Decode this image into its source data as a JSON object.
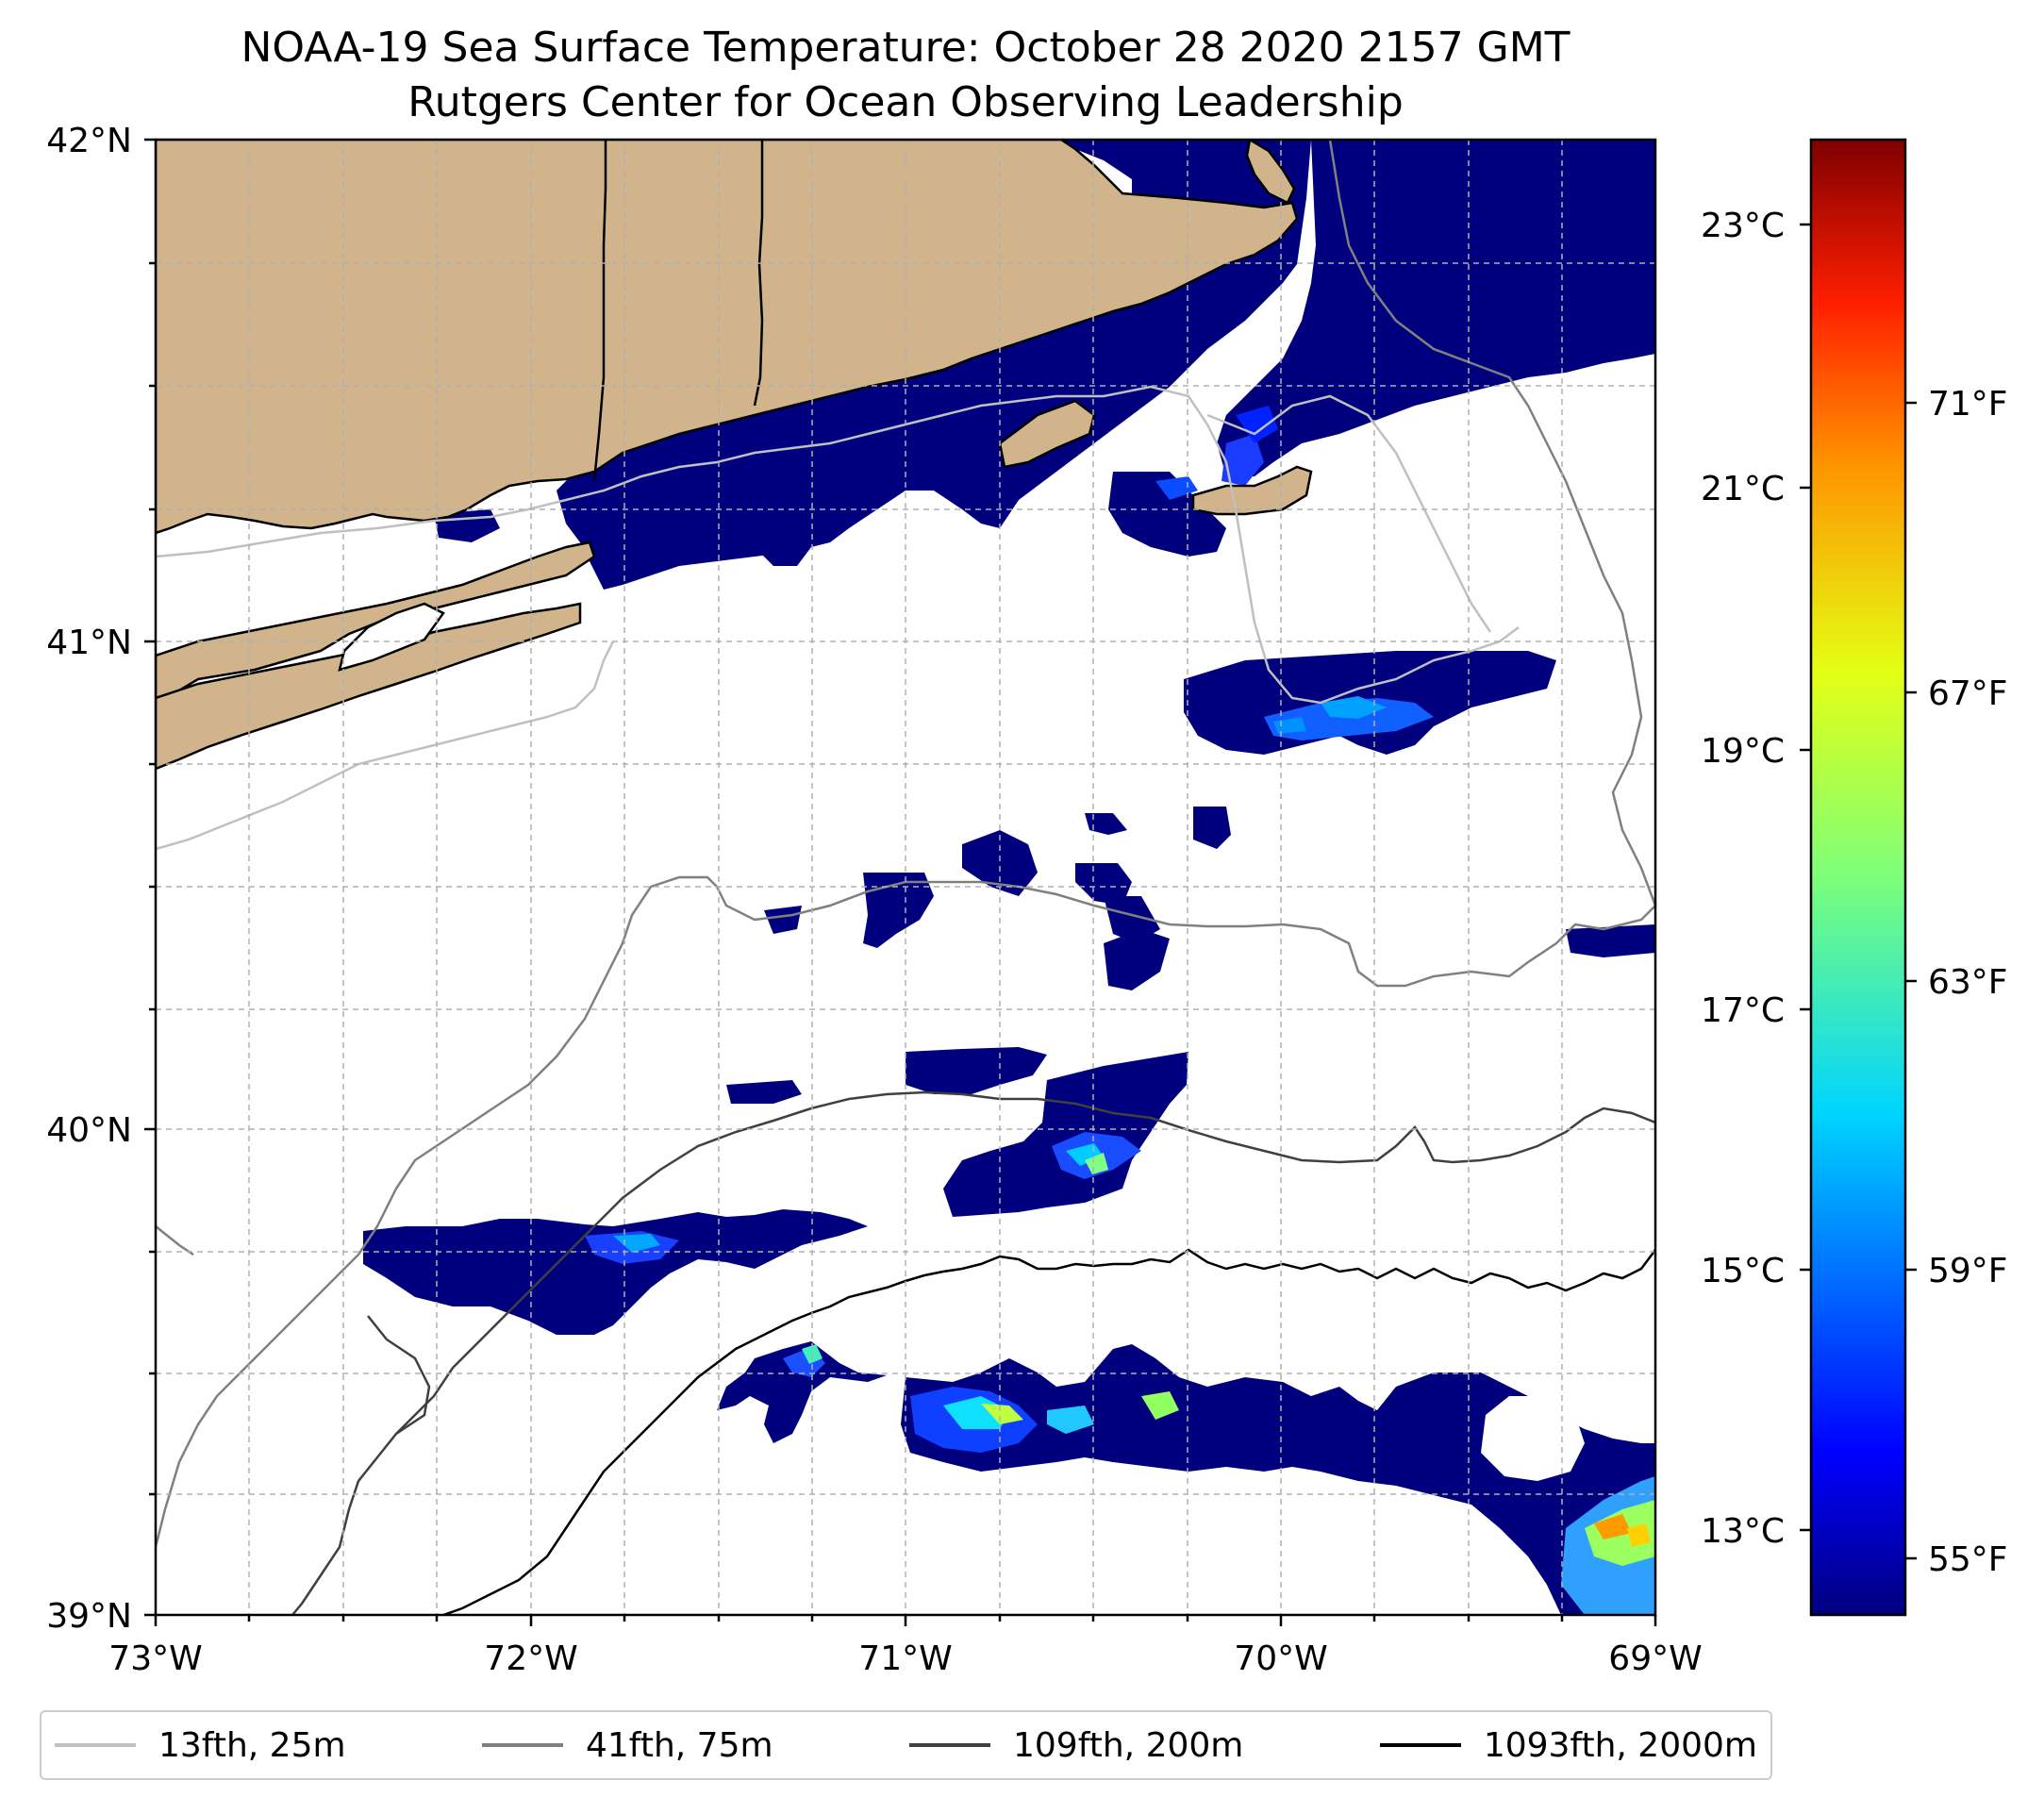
{
  "title": "NOAA-19 Sea Surface Temperature: October 28 2020 2157 GMT",
  "subtitle": "Rutgers Center for Ocean Observing Leadership",
  "axes": {
    "lat_ticks": [
      "42°N",
      "41°N",
      "40°N",
      "39°N"
    ],
    "lon_ticks": [
      "73°W",
      "72°W",
      "71°W",
      "70°W",
      "69°W"
    ],
    "lat_range": [
      39,
      42
    ],
    "lon_range": [
      -73,
      -69
    ],
    "grid": true
  },
  "colorbar": {
    "colormap": "jet",
    "celsius_ticks": [
      "23°C",
      "21°C",
      "19°C",
      "17°C",
      "15°C",
      "13°C"
    ],
    "fahrenheit_ticks": [
      "71°F",
      "67°F",
      "63°F",
      "59°F",
      "55°F"
    ],
    "range_c": [
      12.4,
      23.7
    ]
  },
  "legend": {
    "placement": "bottom",
    "items": [
      {
        "label": "13fth, 25m",
        "color": "#c0c0c0"
      },
      {
        "label": "41fth, 75m",
        "color": "#808080"
      },
      {
        "label": "109fth, 200m",
        "color": "#404040"
      },
      {
        "label": "1093fth, 2000m",
        "color": "#000000"
      }
    ]
  },
  "colors": {
    "land": "#d2b48c",
    "cold_water": "#00007f",
    "cloud_mask": "#ffffff"
  }
}
